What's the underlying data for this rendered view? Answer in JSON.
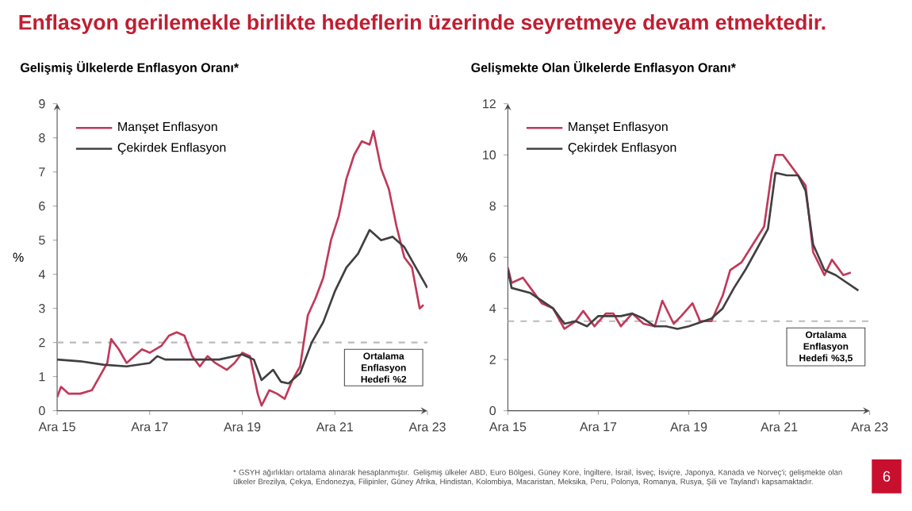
{
  "chart_data": [
    {
      "type": "line",
      "title": "Gelişmiş Ülkelerde Enflasyon Oranı*",
      "ylabel": "%",
      "annotations": [
        "Enflasyon gerilemekle birlikte hedeflerin üzerinde seyretmeye devam etmektedir."
      ],
      "xlim": [
        "2015-12",
        "2023-12"
      ],
      "xticks": [
        {
          "value": "2015-12",
          "label": "Ara 15"
        },
        {
          "value": "2017-12",
          "label": "Ara 17"
        },
        {
          "value": "2019-12",
          "label": "Ara 19"
        },
        {
          "value": "2021-12",
          "label": "Ara 21"
        },
        {
          "value": "2023-12",
          "label": "Ara 23"
        }
      ],
      "ylim": [
        0,
        9
      ],
      "yticks": [
        0,
        1,
        2,
        3,
        4,
        5,
        6,
        7,
        8,
        9
      ],
      "legend": "top left",
      "grid": false,
      "marker": "none",
      "ref_lines": [
        {
          "axis": "y",
          "value": 2,
          "label": "Ortalama Enflasyon Hedefi %2",
          "color": "#bbbbbb",
          "line_style": "dashed"
        }
      ],
      "series": [
        {
          "name": "Manşet Enflasyon",
          "color": "#c0395a",
          "x": [
            "2015-12",
            "2016-01",
            "2016-03",
            "2016-06",
            "2016-09",
            "2016-11",
            "2017-01",
            "2017-02",
            "2017-04",
            "2017-06",
            "2017-08",
            "2017-10",
            "2017-12",
            "2018-03",
            "2018-05",
            "2018-07",
            "2018-09",
            "2018-11",
            "2019-01",
            "2019-03",
            "2019-05",
            "2019-08",
            "2019-10",
            "2019-12",
            "2020-02",
            "2020-04",
            "2020-05",
            "2020-07",
            "2020-09",
            "2020-11",
            "2021-01",
            "2021-03",
            "2021-05",
            "2021-07",
            "2021-09",
            "2021-11",
            "2022-01",
            "2022-03",
            "2022-05",
            "2022-07",
            "2022-09",
            "2022-10",
            "2022-12",
            "2023-02",
            "2023-04",
            "2023-06",
            "2023-08",
            "2023-10",
            "2023-11"
          ],
          "values": [
            0.4,
            0.7,
            0.5,
            0.5,
            0.6,
            1.0,
            1.4,
            2.1,
            1.8,
            1.4,
            1.6,
            1.8,
            1.7,
            1.9,
            2.2,
            2.3,
            2.2,
            1.6,
            1.3,
            1.6,
            1.4,
            1.2,
            1.4,
            1.7,
            1.6,
            0.5,
            0.15,
            0.6,
            0.5,
            0.35,
            0.9,
            1.3,
            2.8,
            3.3,
            3.9,
            5.0,
            5.7,
            6.8,
            7.5,
            7.9,
            7.8,
            8.2,
            7.1,
            6.5,
            5.4,
            4.5,
            4.2,
            3.0,
            3.1
          ]
        },
        {
          "name": "Çekirdek Enflasyon",
          "color": "#404040",
          "x": [
            "2015-12",
            "2016-06",
            "2016-12",
            "2017-06",
            "2017-12",
            "2018-02",
            "2018-04",
            "2018-12",
            "2019-06",
            "2019-12",
            "2020-03",
            "2020-05",
            "2020-08",
            "2020-10",
            "2020-12",
            "2021-03",
            "2021-06",
            "2021-09",
            "2021-12",
            "2022-03",
            "2022-06",
            "2022-09",
            "2022-12",
            "2023-03",
            "2023-06",
            "2023-09",
            "2023-12"
          ],
          "values": [
            1.5,
            1.45,
            1.35,
            1.3,
            1.4,
            1.6,
            1.5,
            1.5,
            1.5,
            1.65,
            1.5,
            0.9,
            1.2,
            0.85,
            0.8,
            1.1,
            2.0,
            2.6,
            3.5,
            4.2,
            4.6,
            5.3,
            5.0,
            5.1,
            4.8,
            4.2,
            3.6
          ]
        }
      ]
    },
    {
      "type": "line",
      "title": "Gelişmekte Olan Ülkelerde Enflasyon Oranı*",
      "ylabel": "%",
      "annotations": [
        "* GSYH ağırlıkları ortalama alınarak hesaplanmıştır. Gelişmiş ülkeler ABD, Euro Bölgesi, Güney Kore, İngiltere, İsrail, İsveç, İsviçre, Japonya, Kanada ve Norveç'i; gelişmekte olan ülkeler Brezilya, Çekya, Endonezya, Filipinler, Güney Afrika, Hindistan, Kolombiya, Macaristan, Meksika, Peru, Polonya, Romanya, Rusya, Şili ve Tayland'ı kapsamaktadır.",
        "6"
      ],
      "xlim": [
        "2015-12",
        "2023-12"
      ],
      "xticks": [
        {
          "value": "2015-12",
          "label": "Ara 15"
        },
        {
          "value": "2017-12",
          "label": "Ara 17"
        },
        {
          "value": "2019-12",
          "label": "Ara 19"
        },
        {
          "value": "2021-12",
          "label": "Ara 21"
        },
        {
          "value": "2023-12",
          "label": "Ara 23"
        }
      ],
      "ylim": [
        0,
        12
      ],
      "yticks": [
        0,
        2,
        4,
        6,
        8,
        10,
        12
      ],
      "legend": "top left",
      "grid": false,
      "marker": "none",
      "ref_lines": [
        {
          "axis": "y",
          "value": 3.5,
          "label": "Ortalama Enflasyon Hedefi %3,5",
          "color": "#bbbbbb",
          "line_style": "dashed"
        }
      ],
      "series": [
        {
          "name": "Manşet Enflasyon",
          "color": "#c0395a",
          "x": [
            "2015-12",
            "2016-01",
            "2016-04",
            "2016-06",
            "2016-09",
            "2016-12",
            "2017-03",
            "2017-06",
            "2017-08",
            "2017-11",
            "2018-02",
            "2018-04",
            "2018-06",
            "2018-09",
            "2018-12",
            "2019-03",
            "2019-05",
            "2019-08",
            "2019-10",
            "2020-01",
            "2020-03",
            "2020-06",
            "2020-09",
            "2020-11",
            "2021-02",
            "2021-05",
            "2021-08",
            "2021-10",
            "2021-11",
            "2022-01",
            "2022-04",
            "2022-07",
            "2022-09",
            "2022-12",
            "2023-02",
            "2023-05",
            "2023-07"
          ],
          "values": [
            5.6,
            5.0,
            5.2,
            4.8,
            4.2,
            4.0,
            3.2,
            3.5,
            3.9,
            3.3,
            3.8,
            3.8,
            3.3,
            3.8,
            3.4,
            3.3,
            4.3,
            3.4,
            3.7,
            4.2,
            3.5,
            3.5,
            4.5,
            5.5,
            5.8,
            6.5,
            7.2,
            9.3,
            10.0,
            10.0,
            9.4,
            8.8,
            6.2,
            5.3,
            5.9,
            5.3,
            5.4
          ]
        },
        {
          "name": "Çekirdek Enflasyon",
          "color": "#404040",
          "x": [
            "2015-12",
            "2016-01",
            "2016-06",
            "2016-12",
            "2017-03",
            "2017-06",
            "2017-09",
            "2017-12",
            "2018-06",
            "2018-09",
            "2018-12",
            "2019-03",
            "2019-06",
            "2019-09",
            "2019-12",
            "2020-06",
            "2020-09",
            "2020-12",
            "2021-03",
            "2021-06",
            "2021-09",
            "2021-11",
            "2022-02",
            "2022-05",
            "2022-07",
            "2022-09",
            "2022-12",
            "2023-03",
            "2023-06",
            "2023-09"
          ],
          "values": [
            5.5,
            4.8,
            4.6,
            4.0,
            3.4,
            3.5,
            3.3,
            3.7,
            3.7,
            3.8,
            3.6,
            3.3,
            3.3,
            3.2,
            3.3,
            3.6,
            4.0,
            4.8,
            5.5,
            6.3,
            7.1,
            9.3,
            9.2,
            9.2,
            8.6,
            6.5,
            5.5,
            5.3,
            5.0,
            4.7
          ]
        }
      ]
    }
  ]
}
